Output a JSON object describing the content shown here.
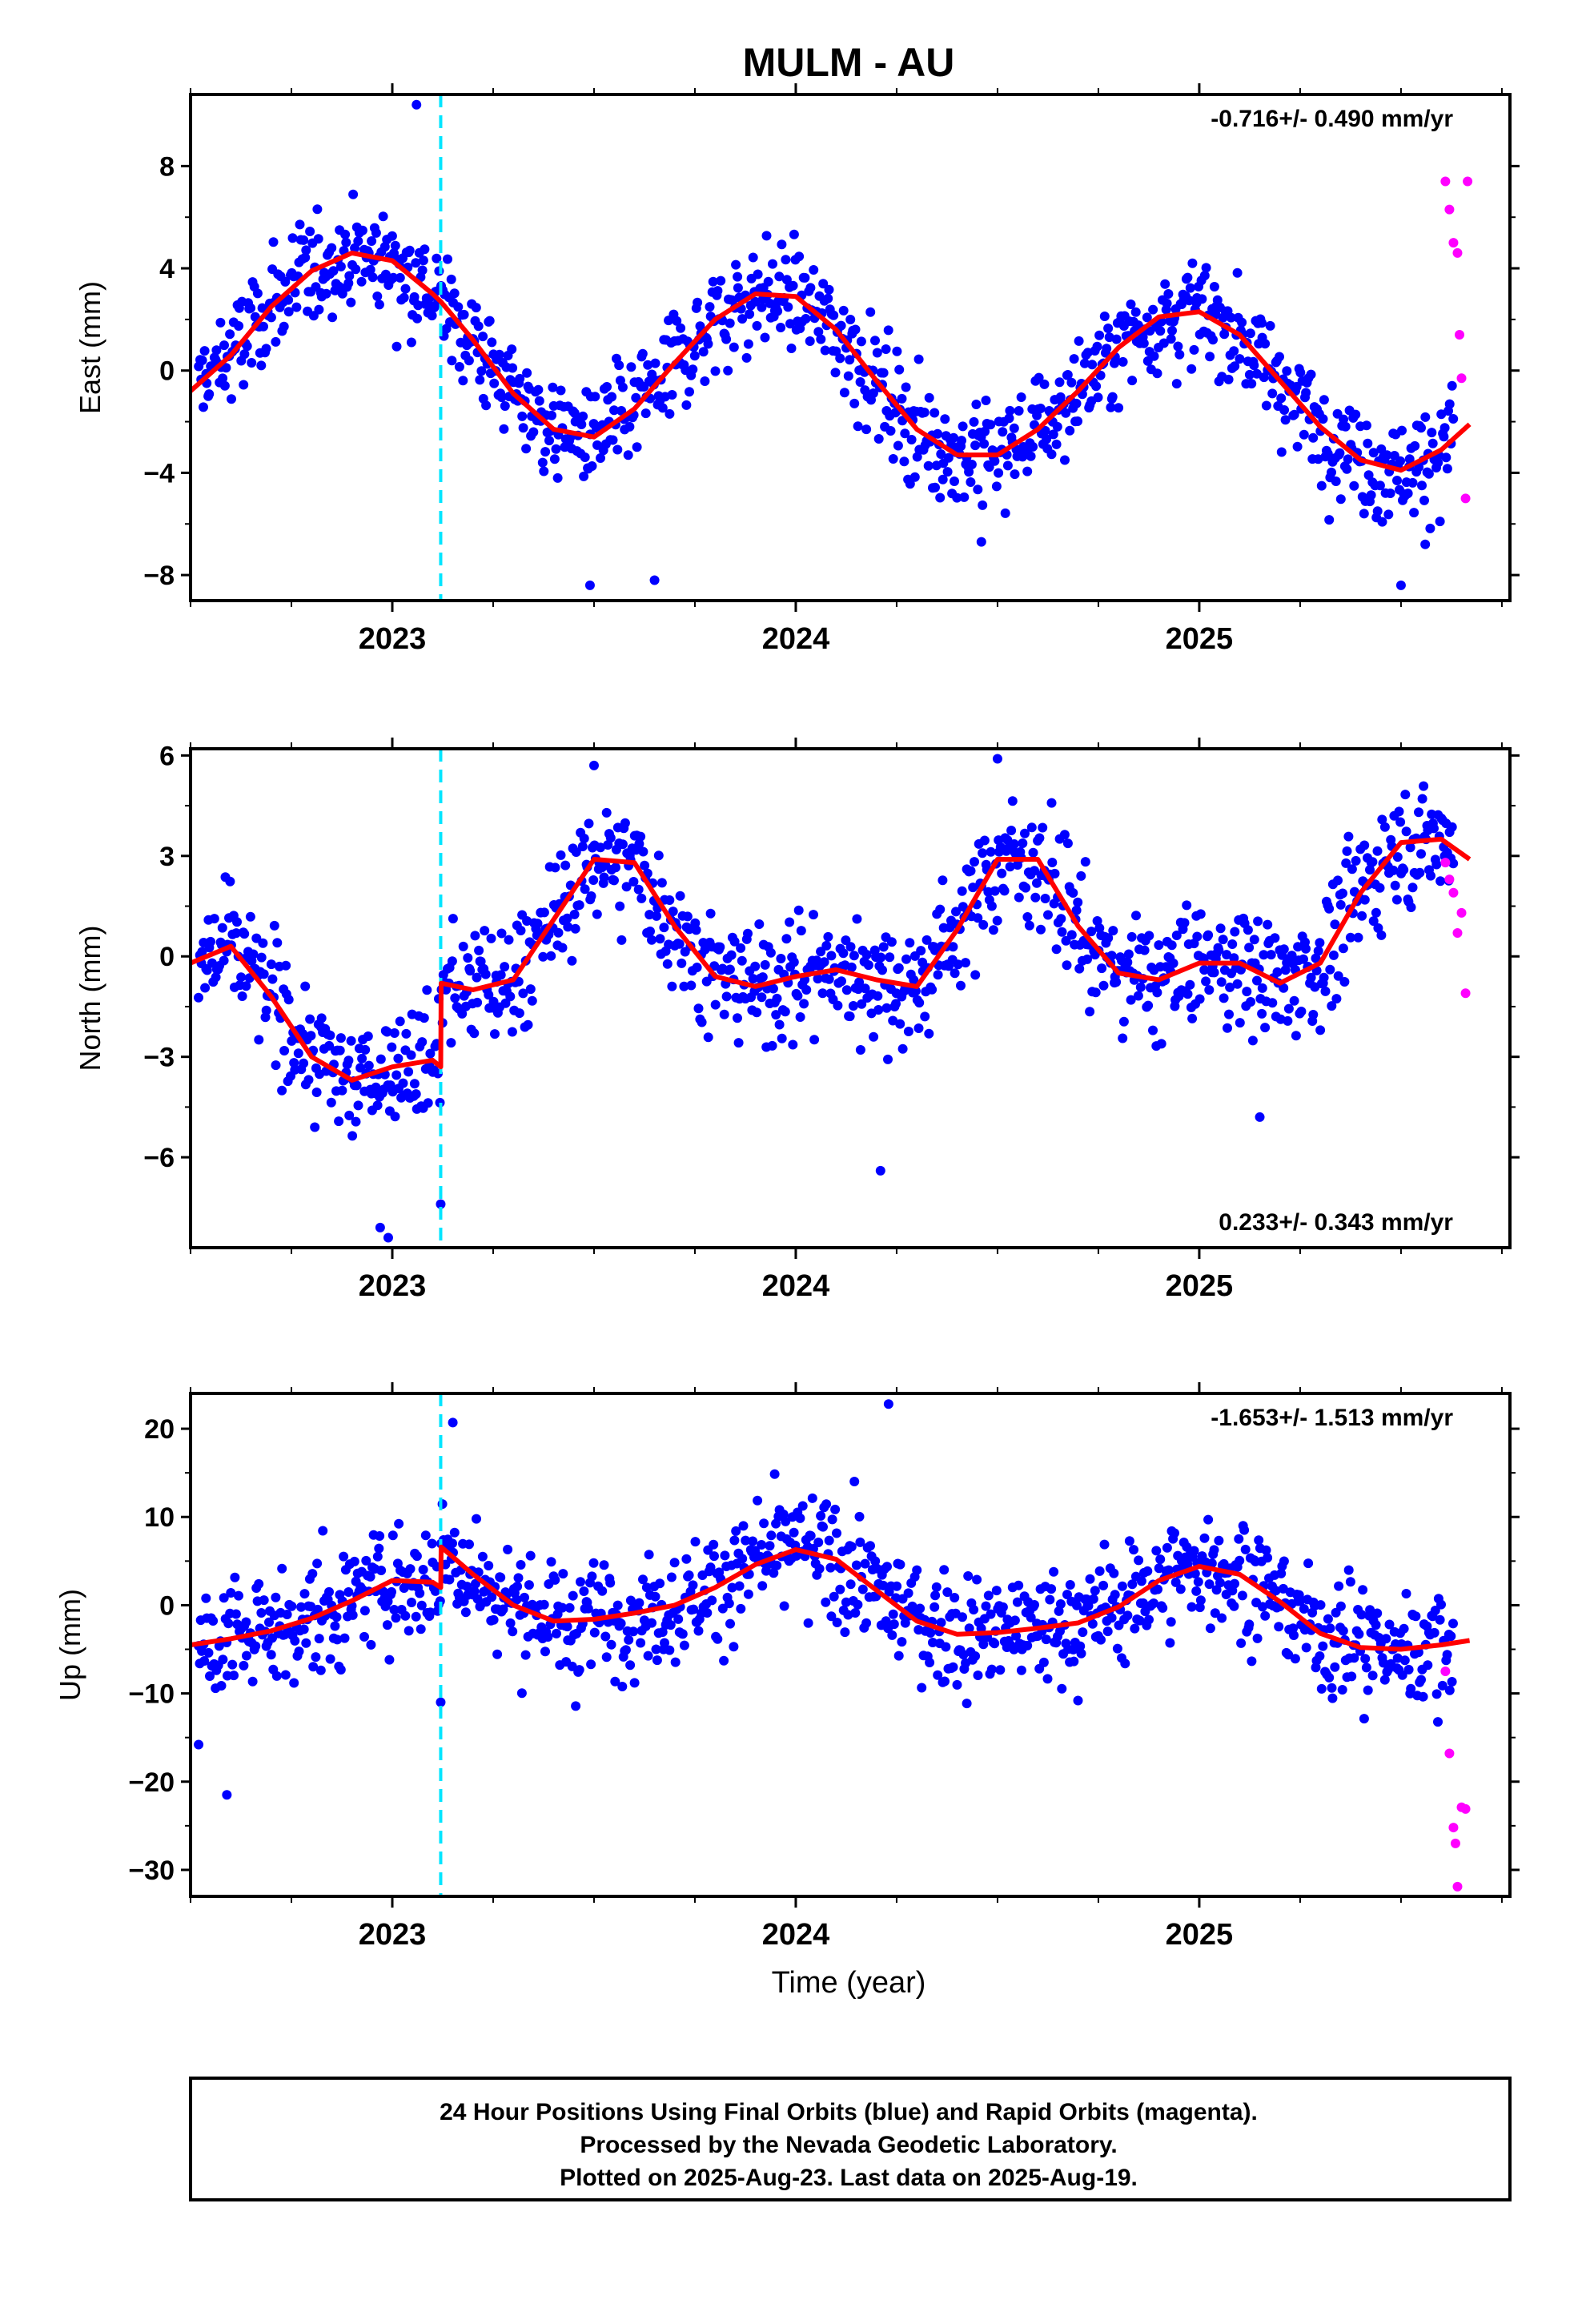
{
  "colors": {
    "final_orbits": "#0000ff",
    "rapid_orbits": "#ff00ff",
    "model": "#ff0000",
    "equipment_change": "#00e5ff",
    "frame": "#000000"
  },
  "footer": {
    "line1": "24 Hour Positions Using Final Orbits (blue) and Rapid Orbits (magenta).",
    "line2": "Processed by the Nevada Geodetic Laboratory.",
    "line3": "Plotted on 2025-Aug-23. Last data on 2025-Aug-19."
  },
  "chart_data": [
    {
      "type": "scatter",
      "title": "MULM - AU",
      "xlabel": "",
      "ylabel": "East (mm)",
      "xlim": [
        2022.5,
        2025.77
      ],
      "ylim": [
        -9,
        10.8
      ],
      "xticks": [
        2023,
        2024,
        2025
      ],
      "yticks": [
        -8,
        -4,
        0,
        4,
        8
      ],
      "rate": "-0.716+/- 0.490 mm/yr",
      "rate_position": "top-right",
      "equipment_change_x": 2023.12,
      "model": {
        "x": [
          2022.5,
          2022.6,
          2022.7,
          2022.8,
          2022.9,
          2023.0,
          2023.1,
          2023.12,
          2023.2,
          2023.3,
          2023.4,
          2023.5,
          2023.6,
          2023.7,
          2023.8,
          2023.9,
          2024.0,
          2024.1,
          2024.2,
          2024.3,
          2024.4,
          2024.5,
          2024.6,
          2024.7,
          2024.8,
          2024.9,
          2025.0,
          2025.1,
          2025.2,
          2025.3,
          2025.4,
          2025.5,
          2025.6,
          2025.67
        ],
        "y": [
          -0.8,
          0.6,
          2.5,
          3.9,
          4.6,
          4.3,
          3.0,
          2.7,
          1.2,
          -0.9,
          -2.3,
          -2.6,
          -1.5,
          0.3,
          2.0,
          3.0,
          2.9,
          1.6,
          -0.4,
          -2.3,
          -3.3,
          -3.3,
          -2.3,
          -0.8,
          0.9,
          2.1,
          2.3,
          1.4,
          -0.4,
          -2.2,
          -3.5,
          -3.9,
          -3.1,
          -2.1
        ]
      },
      "final_orbits": {
        "n": 1040,
        "x_range": [
          2022.52,
          2025.63
        ],
        "scatter_sd": 1.05,
        "outliers": [
          [
            2023.06,
            10.4
          ],
          [
            2023.49,
            -8.4
          ],
          [
            2023.65,
            -8.2
          ],
          [
            2025.5,
            -8.4
          ],
          [
            2025.56,
            -6.8
          ],
          [
            2024.46,
            -6.7
          ]
        ]
      },
      "rapid_orbits": {
        "x": [
          2025.61,
          2025.62,
          2025.63,
          2025.64,
          2025.645,
          2025.65,
          2025.66,
          2025.665
        ],
        "y": [
          7.4,
          6.3,
          5.0,
          4.6,
          1.4,
          -0.3,
          -5.0,
          7.4
        ]
      }
    },
    {
      "type": "scatter",
      "title": "",
      "xlabel": "",
      "ylabel": "North (mm)",
      "xlim": [
        2022.5,
        2025.77
      ],
      "ylim": [
        -8.7,
        6.2
      ],
      "xticks": [
        2023,
        2024,
        2025
      ],
      "yticks": [
        -6,
        -3,
        0,
        3,
        6
      ],
      "rate": "0.233+/- 0.343 mm/yr",
      "rate_position": "bottom-right",
      "equipment_change_x": 2023.12,
      "model": {
        "x": [
          2022.5,
          2022.6,
          2022.7,
          2022.8,
          2022.9,
          2023.0,
          2023.1,
          2023.12,
          2023.121,
          2023.2,
          2023.3,
          2023.4,
          2023.5,
          2023.6,
          2023.7,
          2023.8,
          2023.9,
          2024.0,
          2024.1,
          2024.2,
          2024.3,
          2024.4,
          2024.5,
          2024.6,
          2024.7,
          2024.8,
          2024.9,
          2025.0,
          2025.1,
          2025.2,
          2025.3,
          2025.4,
          2025.5,
          2025.6,
          2025.67
        ],
        "y": [
          -0.2,
          0.3,
          -1.2,
          -3.0,
          -3.7,
          -3.3,
          -3.1,
          -3.3,
          -0.8,
          -1.0,
          -0.7,
          1.1,
          2.9,
          2.8,
          0.9,
          -0.6,
          -0.9,
          -0.6,
          -0.4,
          -0.7,
          -0.9,
          0.8,
          2.9,
          2.9,
          0.9,
          -0.5,
          -0.7,
          -0.2,
          -0.2,
          -0.8,
          -0.2,
          1.9,
          3.4,
          3.5,
          2.9
        ]
      },
      "final_orbits": {
        "n": 1040,
        "x_range": [
          2022.52,
          2025.63
        ],
        "scatter_sd": 0.9,
        "outliers": [
          [
            2022.99,
            -8.4
          ],
          [
            2022.97,
            -8.1
          ],
          [
            2023.12,
            -7.4
          ],
          [
            2024.21,
            -6.4
          ],
          [
            2025.15,
            -4.8
          ],
          [
            2024.5,
            5.9
          ],
          [
            2023.5,
            5.7
          ]
        ]
      },
      "rapid_orbits": {
        "x": [
          2025.61,
          2025.62,
          2025.63,
          2025.64,
          2025.65,
          2025.66
        ],
        "y": [
          2.8,
          2.3,
          1.9,
          0.7,
          1.3,
          -1.1
        ]
      }
    },
    {
      "type": "scatter",
      "title": "",
      "xlabel": "Time (year)",
      "ylabel": "Up (mm)",
      "xlim": [
        2022.5,
        2025.77
      ],
      "ylim": [
        -33,
        24
      ],
      "xticks": [
        2023,
        2024,
        2025
      ],
      "yticks": [
        -30,
        -20,
        -10,
        0,
        10,
        20
      ],
      "rate": "-1.653+/- 1.513 mm/yr",
      "rate_position": "top-right",
      "equipment_change_x": 2023.12,
      "model": {
        "x": [
          2022.5,
          2022.6,
          2022.7,
          2022.8,
          2022.9,
          2023.0,
          2023.1,
          2023.12,
          2023.121,
          2023.2,
          2023.3,
          2023.4,
          2023.5,
          2023.6,
          2023.7,
          2023.8,
          2023.9,
          2024.0,
          2024.1,
          2024.2,
          2024.3,
          2024.4,
          2024.5,
          2024.6,
          2024.7,
          2024.8,
          2024.9,
          2025.0,
          2025.1,
          2025.2,
          2025.3,
          2025.4,
          2025.5,
          2025.6,
          2025.67
        ],
        "y": [
          -4.5,
          -3.8,
          -2.9,
          -1.5,
          0.5,
          2.8,
          2.6,
          2.0,
          6.6,
          3.5,
          0.0,
          -1.8,
          -1.6,
          -0.9,
          0.0,
          2.0,
          4.6,
          6.3,
          5.2,
          1.7,
          -1.8,
          -3.3,
          -3.1,
          -2.6,
          -2.0,
          -0.2,
          2.8,
          4.4,
          3.5,
          0.4,
          -3.2,
          -4.8,
          -5.0,
          -4.5,
          -4.0
        ]
      },
      "final_orbits": {
        "n": 1040,
        "x_range": [
          2022.52,
          2025.63
        ],
        "scatter_sd": 3.3,
        "outliers": [
          [
            2022.59,
            -21.5
          ],
          [
            2023.15,
            20.7
          ],
          [
            2024.23,
            22.8
          ],
          [
            2023.12,
            -11.0
          ],
          [
            2022.52,
            -15.8
          ]
        ]
      },
      "rapid_orbits": {
        "x": [
          2025.61,
          2025.62,
          2025.63,
          2025.635,
          2025.64,
          2025.65,
          2025.66
        ],
        "y": [
          -7.5,
          -16.8,
          -25.2,
          -27.0,
          -31.9,
          -22.9,
          -23.1
        ]
      }
    }
  ]
}
